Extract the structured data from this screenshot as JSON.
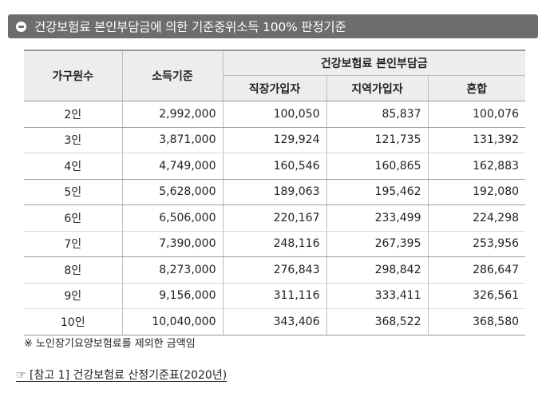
{
  "title": "건강보험료 본인부담금에 의한 기준중위소득 100% 판정기준",
  "table": {
    "headers": {
      "household": "가구원수",
      "income": "소득기준",
      "premium_group": "건강보험료 본인부담금",
      "employee": "직장가입자",
      "regional": "지역가입자",
      "mixed": "혼합"
    },
    "rows": [
      {
        "household": "2인",
        "income": "2,992,000",
        "employee": "100,050",
        "regional": "85,837",
        "mixed": "100,076"
      },
      {
        "household": "3인",
        "income": "3,871,000",
        "employee": "129,924",
        "regional": "121,735",
        "mixed": "131,392"
      },
      {
        "household": "4인",
        "income": "4,749,000",
        "employee": "160,546",
        "regional": "160,865",
        "mixed": "162,883"
      },
      {
        "household": "5인",
        "income": "5,628,000",
        "employee": "189,063",
        "regional": "195,462",
        "mixed": "192,080"
      },
      {
        "household": "6인",
        "income": "6,506,000",
        "employee": "220,167",
        "regional": "233,499",
        "mixed": "224,298"
      },
      {
        "household": "7인",
        "income": "7,390,000",
        "employee": "248,116",
        "regional": "267,395",
        "mixed": "253,956"
      },
      {
        "household": "8인",
        "income": "8,273,000",
        "employee": "276,843",
        "regional": "298,842",
        "mixed": "286,647"
      },
      {
        "household": "9인",
        "income": "9,156,000",
        "employee": "311,116",
        "regional": "333,411",
        "mixed": "326,561"
      },
      {
        "household": "10인",
        "income": "10,040,000",
        "employee": "343,406",
        "regional": "368,522",
        "mixed": "368,580"
      }
    ]
  },
  "note": "※ 노인장기요양보험료를 제외한 금액임",
  "reference": "☞ [참고 1] 건강보험료 산정기준표(2020년)"
}
